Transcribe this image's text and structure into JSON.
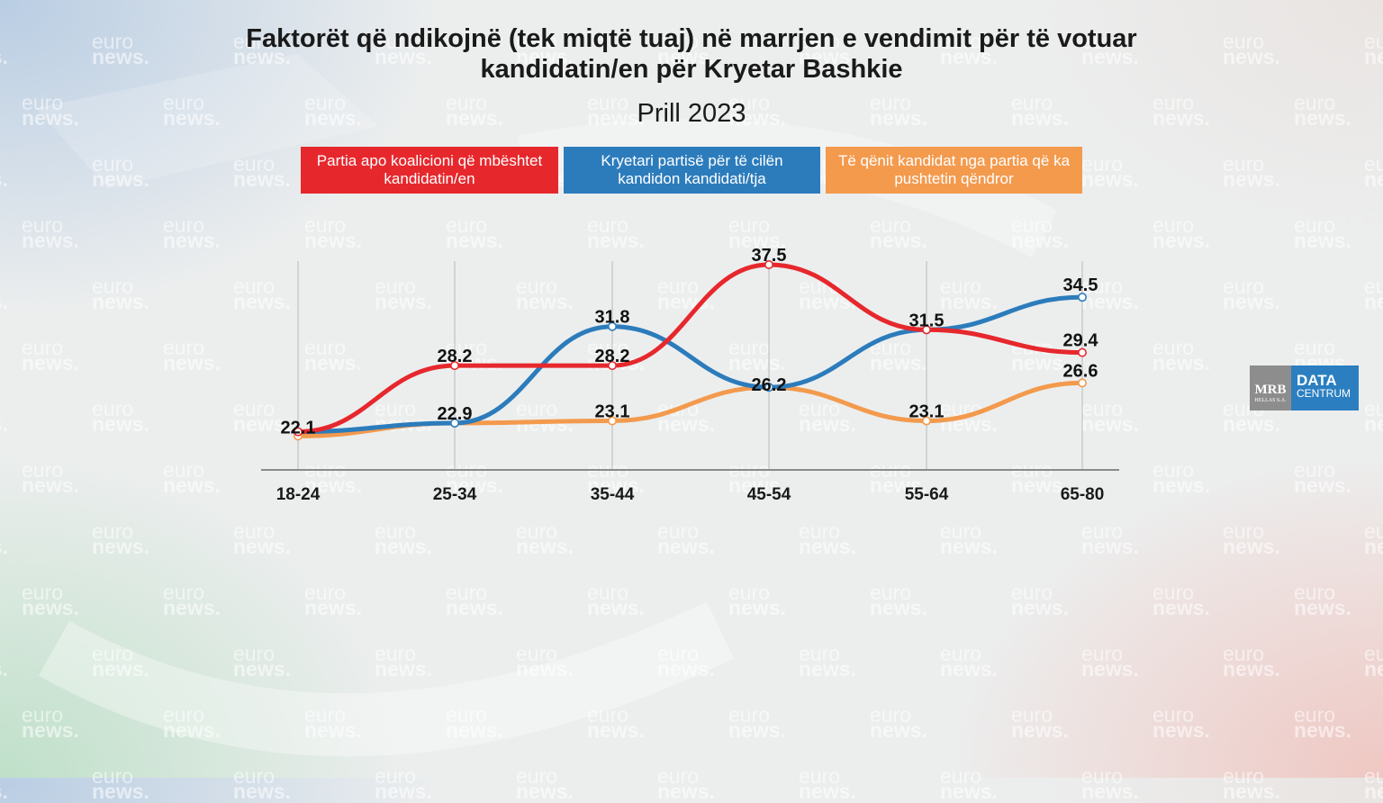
{
  "title_line1": "Faktorët që ndikojnë (tek miqtë tuaj) në marrjen e vendimit për të votuar",
  "title_line2": "kandidatin/en për Kryetar Bashkie",
  "subtitle": "Prill 2023",
  "watermark": {
    "line1": "euro",
    "line2": "news."
  },
  "logo": {
    "mrb": "MRB",
    "mrb_sub": "HELLAS S.A.",
    "data": "DATA",
    "centrum": "CENTRUM"
  },
  "colors": {
    "red": "#e6282d",
    "blue": "#2c7cbc",
    "orange": "#f39a4d"
  },
  "chart_data": {
    "type": "line",
    "categories": [
      "18-24",
      "25-34",
      "35-44",
      "45-54",
      "55-64",
      "65-80"
    ],
    "series": [
      {
        "name": "Partia apo koalicioni që mbështet kandidatin/en",
        "color": "#e6282d",
        "values": [
          22.1,
          28.2,
          28.2,
          37.5,
          31.5,
          29.4
        ]
      },
      {
        "name": "Kryetari partisë për të cilën kandidon kandidati/tja",
        "color": "#2c7cbc",
        "values": [
          22.1,
          22.9,
          31.8,
          26.2,
          31.5,
          34.5
        ]
      },
      {
        "name": "Të qënit kandidat nga partia që ka pushtetin qëndror",
        "color": "#f39a4d",
        "values": [
          21.7,
          22.9,
          23.1,
          26.2,
          23.1,
          26.6
        ]
      }
    ],
    "data_labels": [
      {
        "category": "18-24",
        "text": "22.1"
      },
      {
        "category": "25-34",
        "text": "28.2"
      },
      {
        "category": "25-34",
        "text": "22.9"
      },
      {
        "category": "35-44",
        "text": "31.8"
      },
      {
        "category": "35-44",
        "text": "28.2"
      },
      {
        "category": "35-44",
        "text": "23.1"
      },
      {
        "category": "45-54",
        "text": "37.5"
      },
      {
        "category": "45-54",
        "text": "26.2"
      },
      {
        "category": "55-64",
        "text": "31.5"
      },
      {
        "category": "55-64",
        "text": "23.1"
      },
      {
        "category": "65-80",
        "text": "34.5"
      },
      {
        "category": "65-80",
        "text": "29.4"
      },
      {
        "category": "65-80",
        "text": "26.6"
      }
    ],
    "grid": "vertical",
    "legend_position": "top"
  }
}
